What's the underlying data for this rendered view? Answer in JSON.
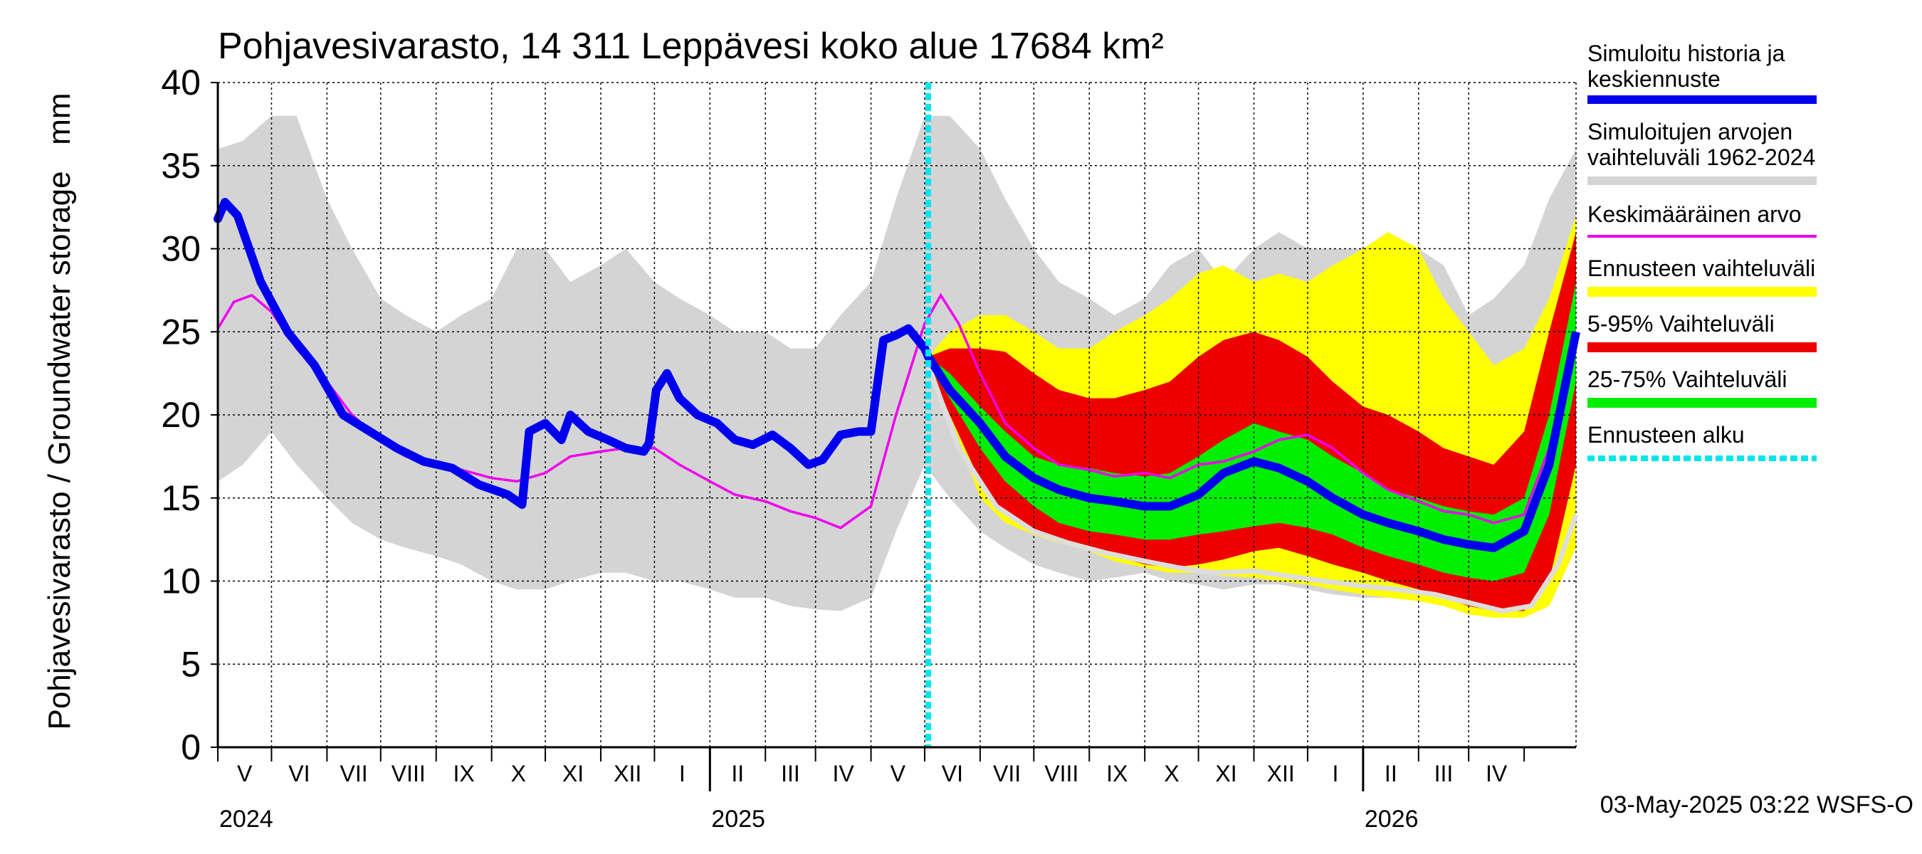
{
  "chart_data": {
    "type": "area",
    "title": "Pohjavesivarasto, 14 311 Leppävesi koko alue 17684 km²",
    "ylabel": "Pohjavesivarasto / Groundwater storage   mm",
    "ylim": [
      0,
      40
    ],
    "yticks": [
      0,
      5,
      10,
      15,
      20,
      25,
      30,
      35,
      40
    ],
    "xlim": [
      "2024-04-01",
      "2026-04-30"
    ],
    "grid": true,
    "month_labels": [
      "V",
      "VI",
      "VII",
      "VIII",
      "IX",
      "X",
      "XI",
      "XII",
      "I",
      "II",
      "III",
      "IV",
      "V",
      "VI",
      "VII",
      "VIII",
      "IX",
      "X",
      "XI",
      "XII",
      "I",
      "II",
      "III",
      "IV"
    ],
    "year_labels": [
      {
        "x": "2024-04-01",
        "label": "2024"
      },
      {
        "x": "2025-01-01",
        "label": "2025"
      },
      {
        "x": "2026-01-01",
        "label": "2026"
      }
    ],
    "forecast_start": "2025-05-03",
    "footer": "03-May-2025 03:22 WSFS-O",
    "colors": {
      "history": "#0000ee",
      "range_hist": "#d4d4d4",
      "mean": "#ee00ee",
      "forecast_range": "#ffff00",
      "p5_95": "#ee0000",
      "p25_75": "#00ee00",
      "forecast_start": "#00e5ee",
      "min_line": "#dddddd"
    },
    "legend": [
      {
        "label": "Simuloitu historia ja keskiennuste",
        "key": "history"
      },
      {
        "label": "Simuloitujen arvojen vaihteluväli 1962-2024",
        "key": "range_hist"
      },
      {
        "label": "Keskimääräinen arvo",
        "key": "mean"
      },
      {
        "label": "Ennusteen vaihteluväli",
        "key": "forecast_range"
      },
      {
        "label": "5-95% Vaihteluväli",
        "key": "p5_95"
      },
      {
        "label": "25-75% Vaihteluväli",
        "key": "p25_75"
      },
      {
        "label": "Ennusteen alku",
        "key": "forecast_start"
      }
    ],
    "series": {
      "range_hist": {
        "x": [
          "2024-04-01",
          "2024-04-15",
          "2024-05-01",
          "2024-05-15",
          "2024-06-01",
          "2024-06-15",
          "2024-07-01",
          "2024-07-15",
          "2024-08-01",
          "2024-08-15",
          "2024-09-01",
          "2024-09-15",
          "2024-10-01",
          "2024-10-15",
          "2024-11-01",
          "2024-11-15",
          "2024-12-01",
          "2024-12-15",
          "2025-01-01",
          "2025-01-15",
          "2025-02-01",
          "2025-02-15",
          "2025-03-01",
          "2025-03-15",
          "2025-04-01",
          "2025-04-15",
          "2025-05-01",
          "2025-05-15",
          "2025-06-01",
          "2025-06-15",
          "2025-07-01",
          "2025-07-15",
          "2025-08-01",
          "2025-08-15",
          "2025-09-01",
          "2025-09-15",
          "2025-10-01",
          "2025-10-15",
          "2025-11-01",
          "2025-11-15",
          "2025-12-01",
          "2025-12-15",
          "2026-01-01",
          "2026-01-15",
          "2026-02-01",
          "2026-02-15",
          "2026-03-01",
          "2026-03-15",
          "2026-04-01",
          "2026-04-15",
          "2026-04-30"
        ],
        "upper": [
          36,
          36.5,
          38,
          38,
          33,
          30,
          27,
          26,
          25,
          26,
          27,
          30,
          30,
          28,
          29,
          30,
          28,
          27,
          26,
          25,
          25,
          24,
          24,
          26,
          28,
          33,
          38,
          38,
          36,
          33,
          30,
          28,
          27,
          26,
          27,
          29,
          30,
          28,
          30,
          31,
          30,
          30,
          30,
          31,
          30,
          29,
          26,
          27,
          29,
          33,
          36
        ],
        "lower": [
          16,
          17,
          19,
          17,
          15,
          13.5,
          12.5,
          12,
          11.5,
          11,
          10,
          9.5,
          9.5,
          10,
          10.5,
          10.5,
          10,
          10,
          9.5,
          9,
          9,
          8.5,
          8.3,
          8.2,
          9,
          13,
          17,
          15,
          13,
          12,
          11,
          10.5,
          10,
          10.2,
          10.5,
          10,
          9.8,
          9.5,
          9.8,
          9.8,
          9.5,
          9.2,
          9,
          9,
          8.8,
          8.5,
          8.3,
          8.3,
          9,
          12,
          17
        ]
      },
      "mean": {
        "x": [
          "2024-04-01",
          "2024-04-10",
          "2024-04-20",
          "2024-05-01",
          "2024-05-15",
          "2024-06-01",
          "2024-06-15",
          "2024-07-01",
          "2024-07-15",
          "2024-08-01",
          "2024-08-15",
          "2024-09-01",
          "2024-09-15",
          "2024-10-01",
          "2024-10-15",
          "2024-11-01",
          "2024-11-15",
          "2024-12-01",
          "2024-12-15",
          "2025-01-01",
          "2025-01-15",
          "2025-02-01",
          "2025-02-15",
          "2025-03-01",
          "2025-03-15",
          "2025-04-01",
          "2025-04-15",
          "2025-05-01",
          "2025-05-10",
          "2025-05-20",
          "2025-06-01",
          "2025-06-15",
          "2025-07-01",
          "2025-07-15",
          "2025-08-01",
          "2025-08-15",
          "2025-09-01",
          "2025-09-15",
          "2025-10-01",
          "2025-10-15",
          "2025-11-01",
          "2025-11-15",
          "2025-12-01",
          "2025-12-15",
          "2026-01-01",
          "2026-01-15",
          "2026-02-01",
          "2026-02-15",
          "2026-03-01",
          "2026-03-15",
          "2026-04-01",
          "2026-04-15",
          "2026-04-30"
        ],
        "values": [
          25.2,
          26.8,
          27.2,
          26.2,
          24,
          22,
          20,
          18.5,
          17.5,
          17.2,
          16.7,
          16.2,
          16,
          16.5,
          17.5,
          17.8,
          18,
          18,
          17,
          16,
          15.2,
          14.8,
          14.2,
          13.8,
          13.2,
          14.5,
          20,
          25.5,
          27.2,
          25.5,
          22.5,
          19.5,
          18,
          17,
          16.7,
          16.3,
          16.5,
          16.2,
          17,
          17.2,
          17.8,
          18.5,
          18.8,
          18,
          16.5,
          15.5,
          14.8,
          14.2,
          14,
          13.5,
          14,
          18,
          25
        ]
      },
      "history": {
        "x": [
          "2024-04-01",
          "2024-04-05",
          "2024-04-12",
          "2024-04-25",
          "2024-05-10",
          "2024-05-25",
          "2024-06-10",
          "2024-06-25",
          "2024-07-10",
          "2024-07-25",
          "2024-08-10",
          "2024-08-25",
          "2024-09-10",
          "2024-09-18",
          "2024-09-22",
          "2024-10-01",
          "2024-10-10",
          "2024-10-15",
          "2024-10-25",
          "2024-11-05",
          "2024-11-15",
          "2024-11-25",
          "2024-11-28",
          "2024-12-02",
          "2024-12-08",
          "2024-12-15",
          "2024-12-25",
          "2025-01-05",
          "2025-01-15",
          "2025-01-25",
          "2025-02-05",
          "2025-02-15",
          "2025-02-25",
          "2025-03-05",
          "2025-03-15",
          "2025-03-25",
          "2025-04-01",
          "2025-04-08",
          "2025-04-15",
          "2025-04-22",
          "2025-05-01",
          "2025-05-03"
        ],
        "values": [
          31.8,
          32.8,
          32,
          28,
          25,
          23,
          20,
          19,
          18,
          17.2,
          16.8,
          15.8,
          15.2,
          14.6,
          19,
          19.5,
          18.5,
          20,
          19,
          18.5,
          18,
          17.8,
          18.3,
          21.5,
          22.5,
          21,
          20,
          19.5,
          18.5,
          18.2,
          18.8,
          18,
          17,
          17.3,
          18.8,
          19,
          19,
          24.5,
          24.8,
          25.2,
          24,
          23.5
        ]
      },
      "forecast_range": {
        "x": [
          "2025-05-03",
          "2025-05-15",
          "2025-06-01",
          "2025-06-15",
          "2025-07-01",
          "2025-07-15",
          "2025-08-01",
          "2025-08-15",
          "2025-09-01",
          "2025-09-15",
          "2025-10-01",
          "2025-10-15",
          "2025-11-01",
          "2025-11-15",
          "2025-12-01",
          "2025-12-15",
          "2026-01-01",
          "2026-01-15",
          "2026-02-01",
          "2026-02-15",
          "2026-03-01",
          "2026-03-15",
          "2026-04-01",
          "2026-04-15",
          "2026-04-30"
        ],
        "upper": [
          23.5,
          25,
          26,
          26,
          25,
          24,
          24,
          25,
          26,
          27,
          28.5,
          29,
          28,
          28.5,
          28,
          29,
          30,
          31,
          30,
          27,
          25,
          23,
          24,
          27,
          32
        ],
        "lower": [
          23,
          20,
          15,
          13.5,
          12.8,
          12.3,
          11.8,
          11.2,
          10.8,
          10.5,
          10.5,
          10.3,
          10.2,
          10,
          9.8,
          9.5,
          9.2,
          9,
          8.8,
          8.5,
          8,
          7.8,
          7.8,
          8.5,
          12
        ]
      },
      "p5_95": {
        "x": [
          "2025-05-03",
          "2025-05-15",
          "2025-06-01",
          "2025-06-15",
          "2025-07-01",
          "2025-07-15",
          "2025-08-01",
          "2025-08-15",
          "2025-09-01",
          "2025-09-15",
          "2025-10-01",
          "2025-10-15",
          "2025-11-01",
          "2025-11-15",
          "2025-12-01",
          "2025-12-15",
          "2026-01-01",
          "2026-01-15",
          "2026-02-01",
          "2026-02-15",
          "2026-03-01",
          "2026-03-15",
          "2026-04-01",
          "2026-04-15",
          "2026-04-30"
        ],
        "upper": [
          23.5,
          24,
          24,
          23.8,
          22.5,
          21.5,
          21,
          21,
          21.5,
          22,
          23.5,
          24.5,
          25,
          24.5,
          23.5,
          22,
          20.5,
          20,
          19,
          18,
          17.5,
          17,
          19,
          25,
          31
        ],
        "lower": [
          23,
          20,
          16,
          14,
          13,
          12.5,
          12,
          11.5,
          11,
          10.8,
          11,
          11.3,
          11.8,
          12,
          11.5,
          11,
          10.5,
          10,
          9.5,
          9,
          8.5,
          8.2,
          8.2,
          10,
          17
        ]
      },
      "p25_75": {
        "x": [
          "2025-05-03",
          "2025-05-15",
          "2025-06-01",
          "2025-06-15",
          "2025-07-01",
          "2025-07-15",
          "2025-08-01",
          "2025-08-15",
          "2025-09-01",
          "2025-09-15",
          "2025-10-01",
          "2025-10-15",
          "2025-11-01",
          "2025-11-15",
          "2025-12-01",
          "2025-12-15",
          "2026-01-01",
          "2026-01-15",
          "2026-02-01",
          "2026-02-15",
          "2026-03-01",
          "2026-03-15",
          "2026-04-01",
          "2026-04-15",
          "2026-04-30"
        ],
        "upper": [
          23.5,
          22.5,
          20.5,
          19,
          17.5,
          17,
          16.8,
          16.5,
          16.3,
          16.5,
          17.5,
          18.5,
          19.5,
          19,
          18.5,
          17.5,
          16.5,
          15.5,
          15,
          14.5,
          14.2,
          14,
          15,
          20,
          28
        ],
        "lower": [
          23,
          21,
          18,
          16,
          14.5,
          13.5,
          13,
          12.8,
          12.5,
          12.5,
          12.8,
          13,
          13.3,
          13.5,
          13.2,
          12.8,
          12,
          11.5,
          11,
          10.5,
          10.2,
          10,
          10.5,
          14,
          22
        ]
      },
      "forecast_median": {
        "x": [
          "2025-05-03",
          "2025-05-15",
          "2025-06-01",
          "2025-06-15",
          "2025-07-01",
          "2025-07-15",
          "2025-08-01",
          "2025-08-15",
          "2025-09-01",
          "2025-09-15",
          "2025-10-01",
          "2025-10-15",
          "2025-11-01",
          "2025-11-15",
          "2025-12-01",
          "2025-12-15",
          "2026-01-01",
          "2026-01-15",
          "2026-02-01",
          "2026-02-15",
          "2026-03-01",
          "2026-03-15",
          "2026-04-01",
          "2026-04-15",
          "2026-04-30"
        ],
        "values": [
          23.5,
          21.5,
          19.5,
          17.5,
          16.2,
          15.5,
          15,
          14.8,
          14.5,
          14.5,
          15.2,
          16.5,
          17.2,
          16.8,
          16,
          15,
          14,
          13.5,
          13,
          12.5,
          12.2,
          12,
          13,
          17,
          25
        ]
      },
      "min_line": {
        "x": [
          "2025-05-03",
          "2025-05-20",
          "2025-06-10",
          "2025-07-01",
          "2025-07-20",
          "2025-08-10",
          "2025-09-01",
          "2025-09-20",
          "2025-10-10",
          "2025-11-01",
          "2025-11-20",
          "2025-12-10",
          "2026-01-01",
          "2026-01-20",
          "2026-02-10",
          "2026-03-01",
          "2026-03-20",
          "2026-04-05",
          "2026-04-20",
          "2026-04-30"
        ],
        "values": [
          23,
          18,
          14.5,
          13,
          12.3,
          11.7,
          11.2,
          10.8,
          10.5,
          10.6,
          10.3,
          10,
          9.7,
          9.5,
          9.2,
          8.7,
          8.2,
          8.5,
          11,
          14
        ]
      }
    }
  }
}
